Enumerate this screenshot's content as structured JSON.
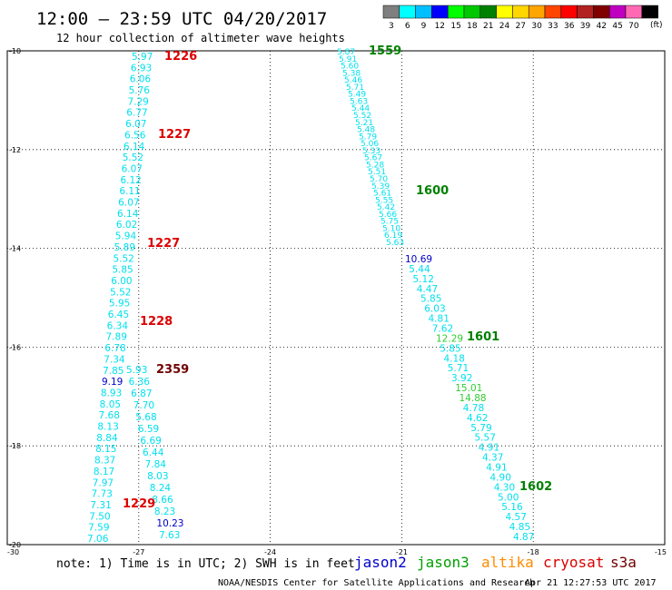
{
  "title": "12:00 – 23:59 UTC 04/20/2017",
  "subtitle": "12 hour collection of altimeter wave heights",
  "scale": {
    "unit": "(ft)",
    "bins": [
      {
        "label": "3",
        "color": "#7f7f7f"
      },
      {
        "label": "6",
        "color": "#00ffff"
      },
      {
        "label": "9",
        "color": "#00bfff"
      },
      {
        "label": "12",
        "color": "#0000ff"
      },
      {
        "label": "15",
        "color": "#00ff00"
      },
      {
        "label": "18",
        "color": "#00c800"
      },
      {
        "label": "21",
        "color": "#008000"
      },
      {
        "label": "24",
        "color": "#ffff00"
      },
      {
        "label": "27",
        "color": "#ffd700"
      },
      {
        "label": "30",
        "color": "#ffa500"
      },
      {
        "label": "33",
        "color": "#ff4500"
      },
      {
        "label": "36",
        "color": "#ff0000"
      },
      {
        "label": "39",
        "color": "#b22222"
      },
      {
        "label": "42",
        "color": "#800000"
      },
      {
        "label": "45",
        "color": "#c000c0"
      },
      {
        "label": "70",
        "color": "#ff69b4"
      },
      {
        "label": "",
        "color": "#000000"
      }
    ]
  },
  "axes": {
    "lat_labels": [
      "-10",
      "-12",
      "-14",
      "-16",
      "-18",
      "-20"
    ],
    "lon_labels": [
      "-30",
      "-27",
      "-24",
      "-21",
      "-18",
      "-15"
    ],
    "lat_range": [
      -20,
      -10
    ],
    "lon_range": [
      -30,
      -15
    ]
  },
  "colors": {
    "cyan": "#00e0ee",
    "blue": "#0000cc",
    "green_light": "#33cc33",
    "green_dark": "#008000",
    "red": "#dd0000",
    "dark_red": "#700000"
  },
  "track_a": {
    "values": [
      "5.97",
      "6.93",
      "6.06",
      "5.76",
      "7.29",
      "6.77",
      "6.07",
      "6.56",
      "6.14",
      "5.52",
      "6.07",
      "6.12",
      "6.11",
      "6.07",
      "6.14",
      "6.02",
      "5.94",
      "5.89",
      "5.52",
      "5.85",
      "6.00",
      "5.52",
      "5.95",
      "6.45",
      "6.34",
      "7.89",
      "6.78",
      "7.34",
      "7.85",
      "9.19",
      "8.93",
      "8.05",
      "7.68",
      "8.13",
      "8.84",
      "8.15",
      "8.37",
      "8.17",
      "7.97",
      "7.73",
      "7.31",
      "7.50",
      "7.59",
      "7.06"
    ],
    "colors": [
      "c",
      "c",
      "c",
      "c",
      "c",
      "c",
      "c",
      "c",
      "c",
      "c",
      "c",
      "c",
      "c",
      "c",
      "c",
      "c",
      "c",
      "c",
      "c",
      "c",
      "c",
      "c",
      "c",
      "c",
      "c",
      "c",
      "c",
      "c",
      "c",
      "b",
      "c",
      "c",
      "c",
      "c",
      "c",
      "c",
      "c",
      "c",
      "c",
      "c",
      "c",
      "c",
      "c",
      "c"
    ]
  },
  "track_b": {
    "values": [
      "5.93",
      "6.36",
      "6.87",
      "7.70",
      "5.68",
      "6.59",
      "6.69",
      "6.44",
      "7.84",
      "8.03",
      "8.24",
      "8.66",
      "8.23",
      "10.23",
      "7.63"
    ],
    "colors": [
      "c",
      "c",
      "c",
      "c",
      "c",
      "c",
      "c",
      "c",
      "c",
      "c",
      "c",
      "c",
      "c",
      "b",
      "c"
    ]
  },
  "track_c": {
    "values": [
      "5.87",
      "5.91",
      "5.60",
      "5.38",
      "5.46",
      "5.71",
      "5.49",
      "5.63",
      "5.44",
      "5.52",
      "5.21",
      "5.48",
      "5.79",
      "5.06",
      "5.33",
      "5.67",
      "5.28",
      "5.51",
      "5.70",
      "5.39",
      "5.61",
      "5.55",
      "5.42",
      "5.66",
      "5.75",
      "5.10",
      "6.19",
      "5.63"
    ],
    "colors": [
      "c",
      "c",
      "c",
      "c",
      "c",
      "c",
      "c",
      "c",
      "c",
      "c",
      "c",
      "c",
      "c",
      "c",
      "c",
      "c",
      "c",
      "c",
      "c",
      "c",
      "c",
      "c",
      "c",
      "c",
      "c",
      "c",
      "c",
      "c"
    ]
  },
  "track_d": {
    "values": [
      "10.69",
      "5.44",
      "5.12",
      "4.47",
      "5.85",
      "6.03",
      "4.81",
      "7.62",
      "12.29",
      "5.85",
      "4.18",
      "5.71",
      "3.92",
      "15.01",
      "14.88",
      "4.78",
      "4.62",
      "5.79",
      "5.57",
      "4.91",
      "4.37",
      "4.91",
      "4.90",
      "4.30",
      "5.00",
      "5.16",
      "4.57",
      "4.85",
      "4.87"
    ],
    "colors": [
      "b",
      "c",
      "c",
      "c",
      "c",
      "c",
      "c",
      "c",
      "g",
      "c",
      "c",
      "c",
      "c",
      "g",
      "g",
      "c",
      "c",
      "c",
      "c",
      "c",
      "c",
      "c",
      "c",
      "c",
      "c",
      "c",
      "c",
      "c",
      "c"
    ]
  },
  "time_tags": [
    {
      "text": "1226",
      "color": "red"
    },
    {
      "text": "1227",
      "color": "red"
    },
    {
      "text": "1227",
      "color": "red"
    },
    {
      "text": "1228",
      "color": "red"
    },
    {
      "text": "2359",
      "color": "dark_red"
    },
    {
      "text": "1229",
      "color": "red"
    },
    {
      "text": "1559",
      "color": "green_dark"
    },
    {
      "text": "1600",
      "color": "green_dark"
    },
    {
      "text": "1601",
      "color": "green_dark"
    },
    {
      "text": "1602",
      "color": "green_dark"
    }
  ],
  "note": "note: 1) Time is in UTC; 2) SWH is in feet",
  "satellites": [
    {
      "name": "jason2",
      "color": "#0000cc"
    },
    {
      "name": "jason3",
      "color": "#00a000"
    },
    {
      "name": "altika",
      "color": "#ff8c00"
    },
    {
      "name": "cryosat",
      "color": "#dd0000"
    },
    {
      "name": "s3a",
      "color": "#700000"
    }
  ],
  "credit": "NOAA/NESDIS Center for Satellite Applications and Research",
  "timestamp": "Apr 21 12:27:53 UTC 2017"
}
